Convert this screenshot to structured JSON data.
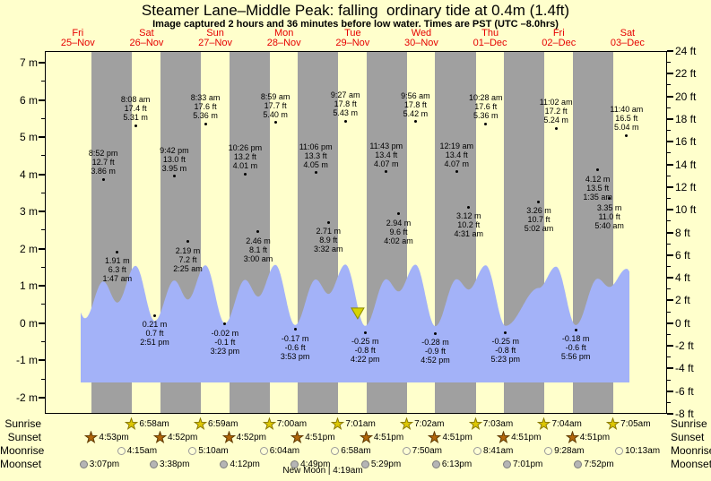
{
  "title": "Steamer Lane–Middle Peak: falling  ordinary tide at 0.4m (1.4ft)",
  "subtitle": "Image captured 2 hours and 36 minutes before low water. Times are PST (UTC –8.0hrs)",
  "days": [
    {
      "dow": "Fri",
      "date": "25–Nov"
    },
    {
      "dow": "Sat",
      "date": "26–Nov"
    },
    {
      "dow": "Sun",
      "date": "27–Nov"
    },
    {
      "dow": "Mon",
      "date": "28–Nov"
    },
    {
      "dow": "Tue",
      "date": "29–Nov"
    },
    {
      "dow": "Wed",
      "date": "30–Nov"
    },
    {
      "dow": "Thu",
      "date": "01–Dec"
    },
    {
      "dow": "Fri",
      "date": "02–Dec"
    },
    {
      "dow": "Sat",
      "date": "03–Dec"
    }
  ],
  "colors": {
    "background": "#ffffcc",
    "night_band": "#a0a0a0",
    "water": "#a3b2f8",
    "day_label_red": "#e60000",
    "sunrise_star_fill": "#ddc702",
    "sunrise_star_stroke": "#8a7a00",
    "sunset_star_fill": "#b2660a",
    "sunset_star_stroke": "#5f3a00",
    "moonrise_fill": "#ffffd6",
    "moonrise_stroke": "#9a9a9a",
    "moonset_fill": "#b5b5b5",
    "moonset_stroke": "#7d7d7d",
    "marker_fill": "#d6d400",
    "marker_stroke": "#8a8a00"
  },
  "chart_data": {
    "type": "area",
    "title": "Steamer Lane–Middle Peak tide curve",
    "ylabel_left": "m",
    "ylabel_right": "ft",
    "left_axis_ticks_m": [
      7,
      6,
      5,
      4,
      3,
      2,
      1,
      0,
      -1,
      -2
    ],
    "right_axis_ticks_ft": [
      24,
      22,
      20,
      18,
      16,
      14,
      12,
      10,
      8,
      6,
      4,
      2,
      0,
      -2,
      -4,
      -6,
      -8
    ],
    "ylim_ft": [
      -8,
      24
    ],
    "grid": false,
    "legend": "none",
    "tide_events": [
      {
        "day": 0,
        "type": "high",
        "time": "8:52 pm",
        "ft": "12.7",
        "m": "3.86"
      },
      {
        "day": 1,
        "type": "low",
        "time": "1:47 am",
        "ft": "6.3",
        "m": "1.91"
      },
      {
        "day": 1,
        "type": "high",
        "time": "8:08 am",
        "ft": "17.4",
        "m": "5.31"
      },
      {
        "day": 1,
        "type": "low",
        "time": "2:51 pm",
        "ft": "0.7",
        "m": "0.21"
      },
      {
        "day": 1,
        "type": "high",
        "time": "9:42 pm",
        "ft": "13.0",
        "m": "3.95"
      },
      {
        "day": 2,
        "type": "low",
        "time": "2:25 am",
        "ft": "7.2",
        "m": "2.19"
      },
      {
        "day": 2,
        "type": "high",
        "time": "8:33 am",
        "ft": "17.6",
        "m": "5.36"
      },
      {
        "day": 2,
        "type": "low",
        "time": "3:23 pm",
        "ft": "-0.1",
        "m": "-0.02"
      },
      {
        "day": 2,
        "type": "high",
        "time": "10:26 pm",
        "ft": "13.2",
        "m": "4.01"
      },
      {
        "day": 3,
        "type": "low",
        "time": "3:00 am",
        "ft": "8.1",
        "m": "2.46"
      },
      {
        "day": 3,
        "type": "high",
        "time": "8:59 am",
        "ft": "17.7",
        "m": "5.40"
      },
      {
        "day": 3,
        "type": "low",
        "time": "3:53 pm",
        "ft": "-0.6",
        "m": "-0.17"
      },
      {
        "day": 3,
        "type": "high",
        "time": "11:06 pm",
        "ft": "13.3",
        "m": "4.05"
      },
      {
        "day": 4,
        "type": "low",
        "time": "3:32 am",
        "ft": "8.9",
        "m": "2.71"
      },
      {
        "day": 4,
        "type": "high",
        "time": "9:27 am",
        "ft": "17.8",
        "m": "5.43"
      },
      {
        "day": 4,
        "type": "low",
        "time": "4:22 pm",
        "ft": "-0.8",
        "m": "-0.25"
      },
      {
        "day": 4,
        "type": "high",
        "time": "11:43 pm",
        "ft": "13.4",
        "m": "4.07"
      },
      {
        "day": 5,
        "type": "low",
        "time": "4:02 am",
        "ft": "9.6",
        "m": "2.94"
      },
      {
        "day": 5,
        "type": "high",
        "time": "9:56 am",
        "ft": "17.8",
        "m": "5.42"
      },
      {
        "day": 5,
        "type": "low",
        "time": "4:52 pm",
        "ft": "-0.9",
        "m": "-0.28"
      },
      {
        "day": 6,
        "type": "high",
        "time": "12:19 am",
        "ft": "13.4",
        "m": "4.07"
      },
      {
        "day": 6,
        "type": "low",
        "time": "4:31 am",
        "ft": "10.2",
        "m": "3.12"
      },
      {
        "day": 6,
        "type": "high",
        "time": "10:28 am",
        "ft": "17.6",
        "m": "5.36"
      },
      {
        "day": 6,
        "type": "low",
        "time": "5:23 pm",
        "ft": "-0.8",
        "m": "-0.25"
      },
      {
        "day": 7,
        "type": "low",
        "time": "5:02 am",
        "ft": "10.7",
        "m": "3.26"
      },
      {
        "day": 7,
        "type": "high",
        "time": "11:02 am",
        "ft": "17.2",
        "m": "5.24"
      },
      {
        "day": 7,
        "type": "low",
        "time": "5:56 pm",
        "ft": "-0.6",
        "m": "-0.18"
      },
      {
        "day": 8,
        "type": "low",
        "time": "1:35 am",
        "ft": "13.5",
        "m": "4.12"
      },
      {
        "day": 8,
        "type": "high",
        "time": "1:35 am",
        "ft": "13.5",
        "m": "4.12",
        "skip": true
      },
      {
        "day": 8,
        "type": "low",
        "time": "5:40 am",
        "ft": "11.0",
        "m": "3.35"
      },
      {
        "day": 8,
        "type": "high",
        "time": "11:40 am",
        "ft": "16.5",
        "m": "5.04"
      }
    ],
    "curve_support_points": [
      {
        "day": 0,
        "time": "7:45 am",
        "m": 5.2
      },
      {
        "day": 0,
        "time": "2:30 pm",
        "m": 0.45
      },
      {
        "day": 8,
        "time": "6:25 pm",
        "m": -0.1
      }
    ],
    "current_marker": {
      "day": 4,
      "time": "1:45 pm",
      "tide_state": "falling",
      "level_m": 0.4
    }
  },
  "astro": {
    "rows": [
      {
        "id": "sunrise",
        "label": "Sunrise",
        "icon": "sunrise-star-icon",
        "events": [
          {
            "day": 1,
            "time": "6:58am"
          },
          {
            "day": 2,
            "time": "6:59am"
          },
          {
            "day": 3,
            "time": "7:00am"
          },
          {
            "day": 4,
            "time": "7:01am"
          },
          {
            "day": 5,
            "time": "7:02am"
          },
          {
            "day": 6,
            "time": "7:03am"
          },
          {
            "day": 7,
            "time": "7:04am"
          },
          {
            "day": 8,
            "time": "7:05am"
          }
        ]
      },
      {
        "id": "sunset",
        "label": "Sunset",
        "icon": "sunset-star-icon",
        "events": [
          {
            "day": 0,
            "time": "4:53pm"
          },
          {
            "day": 1,
            "time": "4:52pm"
          },
          {
            "day": 2,
            "time": "4:52pm"
          },
          {
            "day": 3,
            "time": "4:51pm"
          },
          {
            "day": 4,
            "time": "4:51pm"
          },
          {
            "day": 5,
            "time": "4:51pm"
          },
          {
            "day": 6,
            "time": "4:51pm"
          },
          {
            "day": 7,
            "time": "4:51pm"
          }
        ]
      },
      {
        "id": "moonrise",
        "label": "Moonrise",
        "icon": "moonrise-circle-icon",
        "events": [
          {
            "day": 1,
            "time": "4:15am"
          },
          {
            "day": 2,
            "time": "5:10am"
          },
          {
            "day": 3,
            "time": "6:04am"
          },
          {
            "day": 4,
            "time": "6:58am"
          },
          {
            "day": 5,
            "time": "7:50am"
          },
          {
            "day": 6,
            "time": "8:41am"
          },
          {
            "day": 7,
            "time": "9:28am"
          },
          {
            "day": 8,
            "time": "10:13am"
          }
        ]
      },
      {
        "id": "moonset",
        "label": "Moonset",
        "icon": "moonset-circle-icon",
        "events": [
          {
            "day": 0,
            "time": "3:07pm"
          },
          {
            "day": 1,
            "time": "3:38pm"
          },
          {
            "day": 2,
            "time": "4:12pm"
          },
          {
            "day": 3,
            "time": "4:49pm"
          },
          {
            "day": 4,
            "time": "5:29pm"
          },
          {
            "day": 5,
            "time": "6:13pm"
          },
          {
            "day": 6,
            "time": "7:01pm"
          },
          {
            "day": 7,
            "time": "7:52pm"
          }
        ]
      }
    ],
    "footnote": "New Moon | 4:19am"
  }
}
